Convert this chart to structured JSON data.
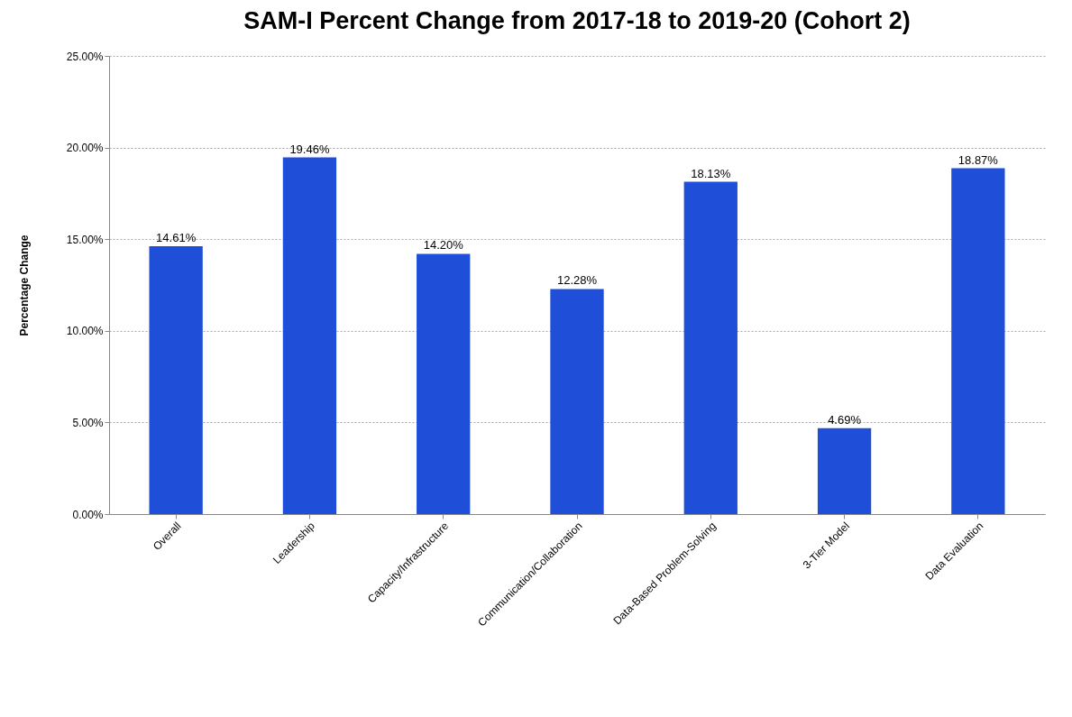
{
  "chart_data": {
    "type": "bar",
    "title": "SAM-I Percent Change from 2017-18 to 2019-20\n(Cohort 2)",
    "ylabel": "Percentage Change",
    "categories": [
      "Overall",
      "Leadership",
      "Capacity/Infrastructure",
      "Communication/Collaboration",
      "Data-Based Problem-Solving",
      "3-Tier Model",
      "Data Evaluation"
    ],
    "values": [
      14.61,
      19.46,
      14.2,
      12.28,
      18.13,
      4.69,
      18.87
    ],
    "value_labels": [
      "14.61%",
      "19.46%",
      "14.20%",
      "12.28%",
      "18.13%",
      "4.69%",
      "18.87%"
    ],
    "color": "#1f4fd8",
    "ylim": [
      0,
      25
    ],
    "yticks": [
      {
        "value": 0,
        "label": "0.00%"
      },
      {
        "value": 5,
        "label": "5.00%"
      },
      {
        "value": 10,
        "label": "10.00%"
      },
      {
        "value": 15,
        "label": "15.00%"
      },
      {
        "value": 20,
        "label": "20.00%"
      },
      {
        "value": 25,
        "label": "25.00%"
      }
    ],
    "grid": "y"
  }
}
